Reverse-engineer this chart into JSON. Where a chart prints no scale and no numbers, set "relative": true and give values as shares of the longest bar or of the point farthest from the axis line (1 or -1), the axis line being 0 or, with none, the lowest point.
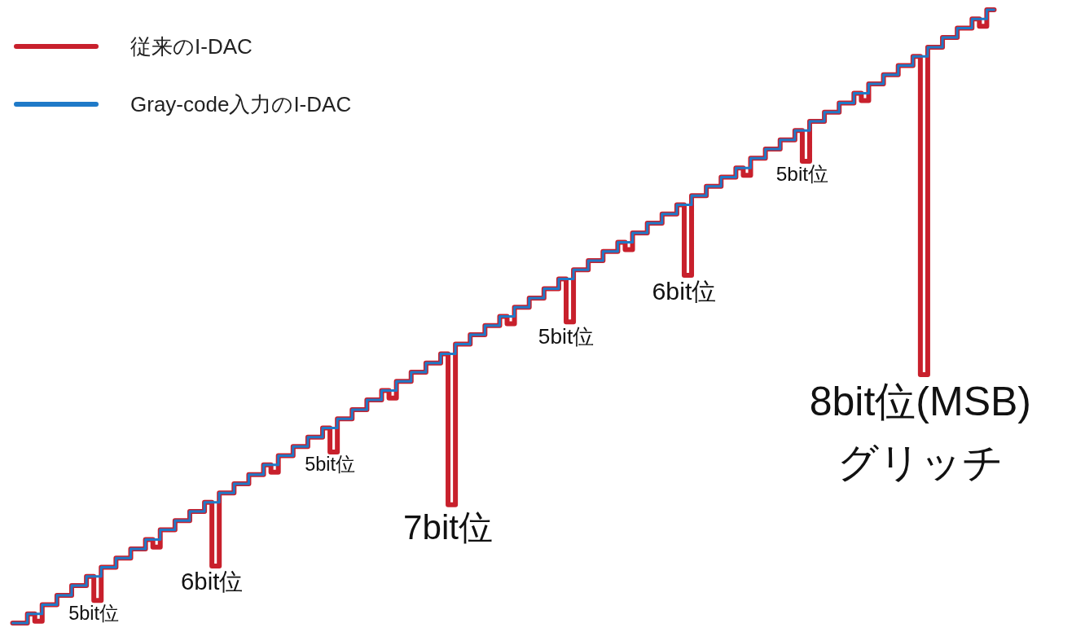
{
  "chart_data": {
    "type": "step",
    "relative": true,
    "legend": "top left",
    "categories": [
      null,
      null,
      null,
      null,
      null,
      null,
      null,
      null,
      null,
      null,
      null,
      null,
      null,
      null,
      null,
      null,
      null,
      null,
      null,
      null,
      null,
      null,
      null,
      null,
      null,
      null,
      null,
      null,
      null,
      null,
      null,
      null,
      null,
      null,
      null,
      null,
      null,
      null,
      null,
      null,
      null,
      null,
      null,
      null,
      null,
      null,
      null,
      null,
      null,
      null,
      null,
      null,
      null,
      null,
      null,
      null,
      null,
      null,
      null,
      null,
      null,
      null,
      null,
      null,
      null,
      null,
      null,
      null,
      null,
      null,
      null,
      null,
      null,
      null,
      null,
      null,
      null,
      null,
      null,
      null,
      null,
      null,
      null,
      null,
      null,
      null,
      null,
      null,
      null,
      null,
      null,
      null,
      null,
      null,
      null,
      null,
      null,
      null,
      null,
      null,
      null,
      null,
      null,
      null,
      null,
      null,
      null,
      null,
      null,
      null,
      null,
      null,
      null,
      null,
      null,
      null,
      null,
      null,
      null,
      null,
      null,
      null,
      null,
      null,
      null,
      null,
      null,
      null,
      null,
      null,
      null,
      null,
      null,
      null
    ],
    "series": [
      {
        "name": "従来のI-DAC",
        "color": "#c8202c",
        "values": [
          0,
          0,
          0.015,
          0.003,
          0.03,
          0.03,
          0.045,
          0.045,
          0.061,
          0.061,
          0.076,
          0.037,
          0.091,
          0.091,
          0.106,
          0.106,
          0.121,
          0.121,
          0.136,
          0.124,
          0.152,
          0.152,
          0.167,
          0.167,
          0.182,
          0.182,
          0.197,
          0.093,
          0.212,
          0.212,
          0.227,
          0.227,
          0.242,
          0.242,
          0.258,
          0.246,
          0.273,
          0.273,
          0.288,
          0.288,
          0.303,
          0.303,
          0.318,
          0.279,
          0.333,
          0.333,
          0.348,
          0.348,
          0.364,
          0.364,
          0.379,
          0.367,
          0.394,
          0.394,
          0.409,
          0.409,
          0.424,
          0.424,
          0.439,
          0.193,
          0.455,
          0.455,
          0.47,
          0.47,
          0.485,
          0.485,
          0.5,
          0.488,
          0.515,
          0.515,
          0.53,
          0.53,
          0.545,
          0.545,
          0.561,
          0.491,
          0.576,
          0.576,
          0.591,
          0.591,
          0.606,
          0.606,
          0.621,
          0.609,
          0.636,
          0.636,
          0.652,
          0.652,
          0.667,
          0.667,
          0.682,
          0.567,
          0.697,
          0.697,
          0.712,
          0.712,
          0.727,
          0.727,
          0.742,
          0.73,
          0.758,
          0.758,
          0.773,
          0.773,
          0.788,
          0.788,
          0.803,
          0.753,
          0.818,
          0.818,
          0.833,
          0.833,
          0.848,
          0.848,
          0.864,
          0.852,
          0.879,
          0.879,
          0.894,
          0.894,
          0.909,
          0.909,
          0.924,
          0.405,
          0.939,
          0.939,
          0.955,
          0.955,
          0.97,
          0.97,
          0.985,
          0.973,
          1,
          1
        ]
      },
      {
        "name": "Gray-code入力のI-DAC",
        "color": "#1f7ac8",
        "values": [
          0,
          0,
          0.015,
          0.015,
          0.03,
          0.03,
          0.045,
          0.045,
          0.061,
          0.061,
          0.076,
          0.076,
          0.091,
          0.091,
          0.106,
          0.106,
          0.121,
          0.121,
          0.136,
          0.136,
          0.152,
          0.152,
          0.167,
          0.167,
          0.182,
          0.182,
          0.197,
          0.197,
          0.212,
          0.212,
          0.227,
          0.227,
          0.242,
          0.242,
          0.258,
          0.258,
          0.273,
          0.273,
          0.288,
          0.288,
          0.303,
          0.303,
          0.318,
          0.318,
          0.333,
          0.333,
          0.348,
          0.348,
          0.364,
          0.364,
          0.379,
          0.379,
          0.394,
          0.394,
          0.409,
          0.409,
          0.424,
          0.424,
          0.439,
          0.439,
          0.455,
          0.455,
          0.47,
          0.47,
          0.485,
          0.485,
          0.5,
          0.5,
          0.515,
          0.515,
          0.53,
          0.53,
          0.545,
          0.545,
          0.561,
          0.561,
          0.576,
          0.576,
          0.591,
          0.591,
          0.606,
          0.606,
          0.621,
          0.621,
          0.636,
          0.636,
          0.652,
          0.652,
          0.667,
          0.667,
          0.682,
          0.682,
          0.697,
          0.697,
          0.712,
          0.712,
          0.727,
          0.727,
          0.742,
          0.742,
          0.758,
          0.758,
          0.773,
          0.773,
          0.788,
          0.788,
          0.803,
          0.803,
          0.818,
          0.818,
          0.833,
          0.833,
          0.848,
          0.848,
          0.864,
          0.864,
          0.879,
          0.879,
          0.894,
          0.894,
          0.909,
          0.909,
          0.924,
          0.924,
          0.939,
          0.939,
          0.955,
          0.955,
          0.97,
          0.97,
          0.985,
          0.985,
          1,
          1
        ]
      }
    ],
    "annotations": [
      "5bit位",
      "6bit位",
      "5bit位",
      "7bit位",
      "5bit位",
      "6bit位",
      "5bit位",
      "8bit位(MSB)\nグリッチ"
    ]
  }
}
